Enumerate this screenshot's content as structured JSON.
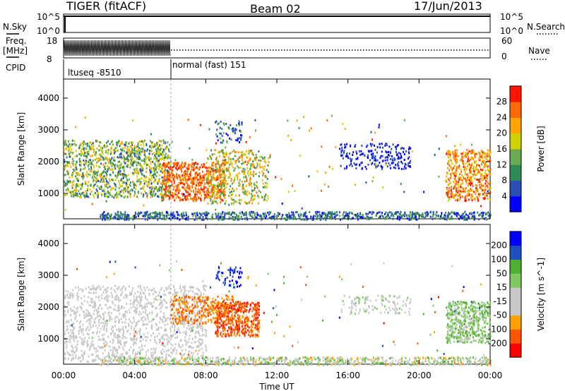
{
  "header": {
    "station": "TIGER (fitACF)",
    "beam": "Beam 02",
    "date": "17/Jun/2013"
  },
  "params": {
    "nsky_label": "N.Sky",
    "nsky_ticks": [
      "10^5",
      "10^0"
    ],
    "nsearch_label": "N.Search",
    "freq_label": "Freq.",
    "freq_unit": "[MHz]",
    "freq_ticks": [
      "18",
      "8"
    ],
    "nave_label": "Nave",
    "nave_ticks": [
      "60",
      "0"
    ],
    "cpid_label": "CPID",
    "cpid_segments": [
      {
        "label": "ltuseq -8510",
        "start": "00:00",
        "end": "06:00"
      },
      {
        "label": "normal (fast) 151",
        "start": "06:00",
        "end": "24:00"
      }
    ]
  },
  "colors": {
    "power": [
      "#0000ff",
      "#2a4eb4",
      "#2e8b57",
      "#6aaa50",
      "#d2d200",
      "#ffa500",
      "#ff6a00",
      "#ff1400"
    ],
    "velocity": [
      "#ff0000",
      "#ff5500",
      "#ffa000",
      "#c8c8c8",
      "#c8c8c8",
      "#80c860",
      "#50b030",
      "#2050c0",
      "#0000ff"
    ]
  },
  "chart_data": [
    {
      "type": "heatmap",
      "name": "power",
      "ylabel": "Slant Range [km]",
      "yticks": [
        "1000",
        "2000",
        "3000",
        "4000"
      ],
      "ylim": [
        200,
        4600
      ],
      "xlim": [
        "00:00",
        "24:00"
      ],
      "colorbar_label": "Power [dB]",
      "colorbar_ticks": [
        "4",
        "8",
        "12",
        "16",
        "20",
        "24",
        "28"
      ],
      "regions": [
        {
          "t": [
            0.0,
            6.0
          ],
          "range": [
            900,
            2700
          ],
          "level": "green-orange mix"
        },
        {
          "t": [
            5.5,
            9.0
          ],
          "range": [
            800,
            2000
          ],
          "level": "orange-red"
        },
        {
          "t": [
            8.0,
            11.5
          ],
          "range": [
            700,
            2400
          ],
          "level": "orange"
        },
        {
          "t": [
            15.5,
            19.5
          ],
          "range": [
            1800,
            2600
          ],
          "level": "blue"
        },
        {
          "t": [
            21.5,
            24.0
          ],
          "range": [
            800,
            2400
          ],
          "level": "orange-red"
        },
        {
          "t": [
            2.0,
            24.0
          ],
          "range": [
            200,
            450
          ],
          "level": "blue-green"
        }
      ]
    },
    {
      "type": "heatmap",
      "name": "velocity",
      "ylabel": "Slant Range [km]",
      "yticks": [
        "1000",
        "2000",
        "3000",
        "4000"
      ],
      "ylim": [
        200,
        4600
      ],
      "xlim": [
        "00:00",
        "24:00"
      ],
      "xlabel": "Time UT",
      "xticks": [
        "00:00",
        "04:00",
        "08:00",
        "12:00",
        "16:00",
        "20:00",
        "00:00"
      ],
      "colorbar_label": "Velocity [m s^-1]",
      "colorbar_ticks": [
        "-200",
        "-100",
        "-50",
        "-15",
        "15",
        "50",
        "100",
        "200"
      ],
      "regions": [
        {
          "t": [
            0.0,
            8.0
          ],
          "range": [
            300,
            2700
          ],
          "level": "grey (-15 to 15)"
        },
        {
          "t": [
            6.0,
            9.5
          ],
          "range": [
            1500,
            2400
          ],
          "level": "orange (-50 to -100)"
        },
        {
          "t": [
            8.5,
            11.0
          ],
          "range": [
            1100,
            2200
          ],
          "level": "orange-red"
        },
        {
          "t": [
            21.5,
            24.0
          ],
          "range": [
            900,
            2200
          ],
          "level": "green (15 to 50)"
        },
        {
          "t": [
            2.0,
            24.0
          ],
          "range": [
            200,
            450
          ],
          "level": "green-orange"
        }
      ]
    }
  ]
}
